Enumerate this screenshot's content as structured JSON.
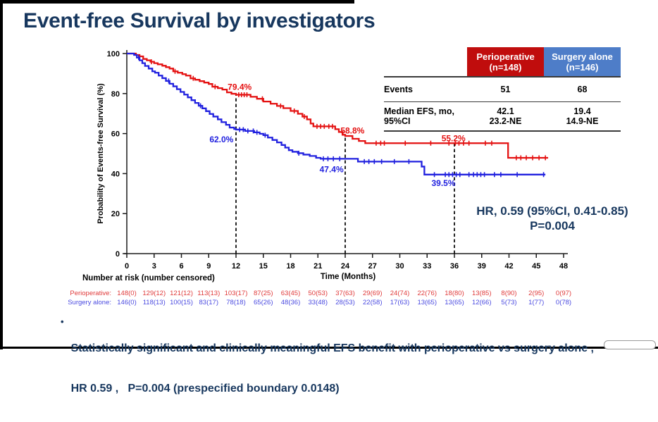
{
  "title": "Event-free Survival by investigators",
  "summary_table": {
    "headers": [
      {
        "label": "Perioperative",
        "sub": "(n=148)",
        "bg": "#C00D0D",
        "fg": "#FFFFFF"
      },
      {
        "label": "Surgery alone",
        "sub": "(n=146)",
        "bg": "#4E7DC8",
        "fg": "#FFFFFF"
      }
    ],
    "rows": [
      {
        "label": "Events",
        "values": [
          "51",
          "68"
        ]
      },
      {
        "label": "Median EFS, mo,",
        "label2": "95%CI",
        "values": [
          "42.1",
          "19.4"
        ],
        "values2": [
          "23.2-NE",
          "14.9-NE"
        ]
      }
    ]
  },
  "hr_note": {
    "line1": "HR, 0.59 (95%CI, 0.41-0.85)",
    "line2": "P=0.004"
  },
  "chart_data": {
    "type": "line",
    "subtype": "kaplan-meier-step",
    "title": "",
    "xlabel": "Time (Months)",
    "ylabel": "Probability of Events-free Survival (%)",
    "xlim": [
      0,
      48
    ],
    "ylim": [
      0,
      100
    ],
    "xticks": [
      0,
      3,
      6,
      9,
      12,
      15,
      18,
      21,
      24,
      27,
      30,
      33,
      36,
      39,
      42,
      45,
      48
    ],
    "yticks": [
      0,
      20,
      40,
      60,
      80,
      100
    ],
    "grid": false,
    "landmark_dashed_lines": [
      {
        "x": 12,
        "y_top": 79.4
      },
      {
        "x": 24,
        "y_top": 58.8
      },
      {
        "x": 36,
        "y_top": 55.2
      }
    ],
    "series": [
      {
        "name": "Perioperative",
        "color": "#E41111",
        "landmarks": {
          "12mo": "79.4%",
          "24mo": "58.8%",
          "36mo": "55.2%"
        },
        "points": [
          [
            0,
            100
          ],
          [
            1,
            99.3
          ],
          [
            1.4,
            98.6
          ],
          [
            1.8,
            97.3
          ],
          [
            2.2,
            96.6
          ],
          [
            2.6,
            95.9
          ],
          [
            3,
            95.2
          ],
          [
            3.4,
            94.6
          ],
          [
            3.9,
            93.9
          ],
          [
            4.3,
            93.2
          ],
          [
            4.7,
            92.5
          ],
          [
            5.1,
            91.1
          ],
          [
            5.6,
            90.4
          ],
          [
            6.1,
            89.7
          ],
          [
            6.5,
            89
          ],
          [
            7,
            87.6
          ],
          [
            7.5,
            86.9
          ],
          [
            8,
            86.2
          ],
          [
            8.5,
            85.5
          ],
          [
            9,
            84.8
          ],
          [
            9.4,
            83.4
          ],
          [
            10,
            82.7
          ],
          [
            10.5,
            82
          ],
          [
            11,
            80.6
          ],
          [
            11.5,
            79.9
          ],
          [
            12,
            79.4
          ],
          [
            13.6,
            78.4
          ],
          [
            14.3,
            77.4
          ],
          [
            15,
            76
          ],
          [
            15.8,
            74.9
          ],
          [
            16.5,
            73.8
          ],
          [
            17.2,
            72.7
          ],
          [
            18,
            71.3
          ],
          [
            18.8,
            69.9
          ],
          [
            19.3,
            68.5
          ],
          [
            19.8,
            67.1
          ],
          [
            20.2,
            65
          ],
          [
            20.5,
            63.6
          ],
          [
            22.9,
            62.2
          ],
          [
            23.3,
            60.8
          ],
          [
            23.7,
            59.4
          ],
          [
            24,
            58.8
          ],
          [
            24.8,
            57.4
          ],
          [
            25.5,
            56.3
          ],
          [
            26.2,
            55.2
          ],
          [
            41.9,
            47.9
          ],
          [
            46.3,
            47.9
          ]
        ],
        "censor_times": [
          2.7,
          5.3,
          7.3,
          9.7,
          12.3,
          12.6,
          12.9,
          13.2,
          14.9,
          16.9,
          18.4,
          19.5,
          20.9,
          21.3,
          21.7,
          22.2,
          22.6,
          27.4,
          27.9,
          28.3,
          30.6,
          33.4,
          35.4,
          36.1,
          36.5,
          37,
          37.6,
          39.4,
          40.1,
          42.8,
          43.3,
          43.9,
          44.6,
          45.3,
          46
        ]
      },
      {
        "name": "Surgery alone",
        "color": "#2121DF",
        "landmarks": {
          "12mo": "62.0%",
          "24mo": "47.4%",
          "36mo": "39.5%"
        },
        "points": [
          [
            0,
            100
          ],
          [
            0.8,
            99.3
          ],
          [
            1.1,
            98
          ],
          [
            1.4,
            96.6
          ],
          [
            1.7,
            95.2
          ],
          [
            2,
            93.8
          ],
          [
            2.4,
            92.5
          ],
          [
            2.8,
            91.1
          ],
          [
            3.1,
            90.4
          ],
          [
            3.5,
            89
          ],
          [
            3.9,
            87.7
          ],
          [
            4.3,
            86.3
          ],
          [
            4.7,
            84.9
          ],
          [
            5.1,
            83.6
          ],
          [
            5.5,
            82.2
          ],
          [
            5.9,
            80.8
          ],
          [
            6.3,
            79.5
          ],
          [
            6.7,
            78.1
          ],
          [
            7.1,
            76.7
          ],
          [
            7.5,
            75.3
          ],
          [
            7.9,
            73.9
          ],
          [
            8.3,
            72.6
          ],
          [
            8.7,
            71.2
          ],
          [
            9.1,
            69.8
          ],
          [
            9.5,
            68.5
          ],
          [
            10,
            67.1
          ],
          [
            10.4,
            65.7
          ],
          [
            10.9,
            64.4
          ],
          [
            11.3,
            63
          ],
          [
            11.8,
            62.3
          ],
          [
            12,
            62
          ],
          [
            13,
            61.3
          ],
          [
            14,
            60.6
          ],
          [
            14.6,
            59.9
          ],
          [
            15,
            59.2
          ],
          [
            15.5,
            58
          ],
          [
            16,
            56.8
          ],
          [
            16.5,
            55.6
          ],
          [
            17,
            54.3
          ],
          [
            17.4,
            53
          ],
          [
            17.8,
            51.7
          ],
          [
            18.2,
            50.9
          ],
          [
            18.8,
            50.2
          ],
          [
            19.4,
            49.5
          ],
          [
            20.1,
            48.8
          ],
          [
            20.8,
            47.9
          ],
          [
            21.3,
            47.4
          ],
          [
            25.4,
            46
          ],
          [
            32.4,
            43.5
          ],
          [
            32.7,
            39.5
          ],
          [
            46,
            39.5
          ]
        ],
        "censor_times": [
          1.3,
          4.6,
          8.1,
          12.4,
          12.8,
          13.3,
          13.9,
          14.3,
          15.2,
          18.9,
          21.6,
          22.1,
          22.7,
          23.4,
          26.1,
          26.6,
          27.2,
          28,
          29.4,
          31,
          33.8,
          35,
          35.4,
          35.8,
          36.2,
          36.6,
          37.6,
          38.1,
          38.5,
          38.9,
          39.3,
          40.4,
          41.1,
          42.9,
          45.8
        ]
      }
    ],
    "annotations": [
      {
        "text": "79.4%",
        "x": 12.4,
        "y": 83.2,
        "color": "#E41111"
      },
      {
        "text": "62.0%",
        "x": 10.4,
        "y": 57.0,
        "color": "#2121DF"
      },
      {
        "text": "58.8%",
        "x": 24.8,
        "y": 61.5,
        "color": "#E41111"
      },
      {
        "text": "55.2%",
        "x": 35.9,
        "y": 57.5,
        "color": "#E41111"
      },
      {
        "text": "47.4%",
        "x": 22.5,
        "y": 42.0,
        "color": "#2121DF"
      },
      {
        "text": "39.5%",
        "x": 34.8,
        "y": 35.2,
        "color": "#2121DF"
      }
    ]
  },
  "at_risk": {
    "header": "Number at risk (number censored)",
    "rows": [
      {
        "label": "Perioperative:",
        "color": "#E03B3B",
        "values": [
          "148(0)",
          "129(12)",
          "121(12)",
          "113(13)",
          "103(17)",
          "87(25)",
          "63(45)",
          "50(53)",
          "37(63)",
          "29(69)",
          "24(74)",
          "22(76)",
          "18(80)",
          "13(85)",
          "8(90)",
          "2(95)",
          "0(97)"
        ]
      },
      {
        "label": "Surgery alone:",
        "color": "#4A4AE0",
        "values": [
          "146(0)",
          "118(13)",
          "100(15)",
          "83(17)",
          "78(18)",
          "65(26)",
          "48(36)",
          "33(48)",
          "28(53)",
          "22(58)",
          "17(63)",
          "13(65)",
          "13(65)",
          "12(66)",
          "5(73)",
          "1(77)",
          "0(78)"
        ]
      }
    ]
  },
  "footer": {
    "bullet": "•",
    "line1": "Statistically significant and clinically meaningful EFS benefit with perioperative vs surgery alone ,",
    "line2": "HR 0.59 ,   P=0.004 (prespecified boundary 0.0148)"
  }
}
